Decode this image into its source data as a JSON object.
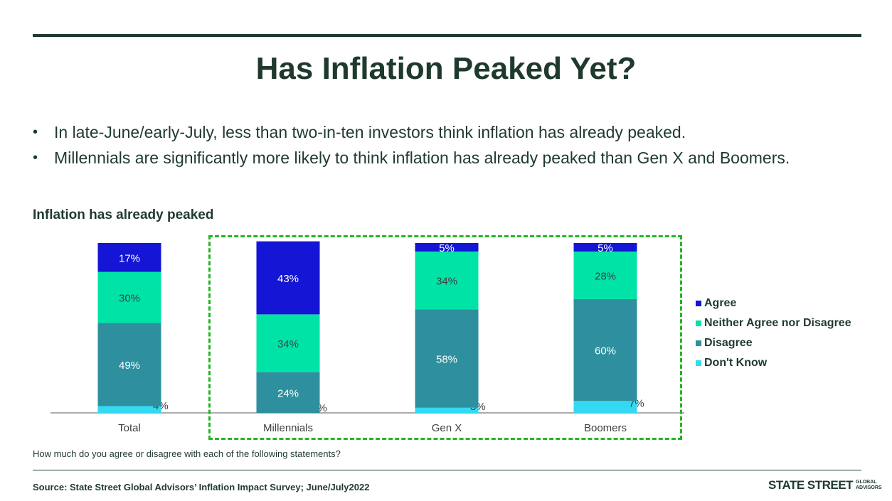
{
  "title": "Has Inflation Peaked Yet?",
  "bullets": [
    "In late-June/early-July, less than two-in-ten investors think inflation has already peaked.",
    "Millennials are significantly more likely to think inflation has already peaked than Gen X and Boomers."
  ],
  "chart_data": {
    "type": "bar",
    "stacked": true,
    "title": "Inflation has already peaked",
    "categories": [
      "Total",
      "Millennials",
      "Gen X",
      "Boomers"
    ],
    "series": [
      {
        "name": "Don't Know",
        "color": "#33d9f2",
        "values": [
          4,
          0,
          3,
          7
        ]
      },
      {
        "name": "Disagree",
        "color": "#2e8f9e",
        "values": [
          49,
          24,
          58,
          60
        ]
      },
      {
        "name": "Neither Agree nor Disagree",
        "color": "#00e3a6",
        "values": [
          30,
          34,
          34,
          28
        ]
      },
      {
        "name": "Agree",
        "color": "#1515d6",
        "values": [
          17,
          43,
          5,
          5
        ]
      }
    ],
    "legend_order": [
      "Agree",
      "Neither Agree nor Disagree",
      "Disagree",
      "Don't Know"
    ],
    "legend_position": "right",
    "highlighted_categories": [
      "Millennials",
      "Gen X",
      "Boomers"
    ],
    "value_label_suffix": "%",
    "ylim": [
      0,
      100
    ],
    "grid": false
  },
  "question": "How much do you agree or disagree with each of the following statements?",
  "source": "Source: State Street Global Advisors’ Inflation Impact Survey; June/July2022",
  "logo": {
    "main": "STATE STREET",
    "sub_line1": "GLOBAL",
    "sub_line2": "ADVISORS"
  }
}
